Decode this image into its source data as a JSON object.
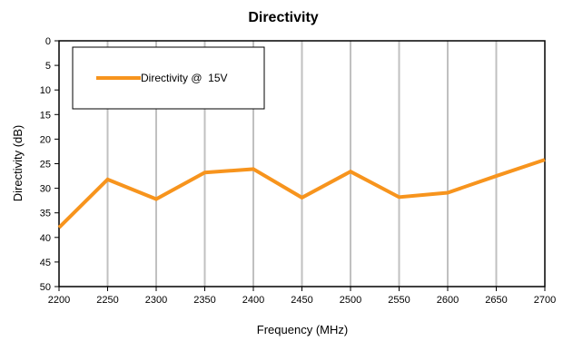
{
  "chart_data": {
    "type": "line",
    "title": "Directivity",
    "xlabel": "Frequency (MHz)",
    "ylabel": "Directivity (dB)",
    "x": [
      2200,
      2250,
      2300,
      2350,
      2400,
      2450,
      2500,
      2550,
      2600,
      2650,
      2700
    ],
    "xlim": [
      2200,
      2700
    ],
    "ylim": [
      0,
      50
    ],
    "y_inverted": true,
    "x_ticks": [
      "2200",
      "2250",
      "2300",
      "2350",
      "2400",
      "2450",
      "2500",
      "2550",
      "2600",
      "2650",
      "2700"
    ],
    "y_ticks": [
      "0",
      "5",
      "10",
      "15",
      "20",
      "25",
      "30",
      "35",
      "40",
      "45",
      "50"
    ],
    "grid": "vertical",
    "legend_position": "top-left",
    "series": [
      {
        "name": "Directivity @  15V",
        "color": "#F7941D",
        "values": [
          38,
          28.2,
          32.2,
          26.8,
          26.1,
          31.9,
          26.6,
          31.8,
          30.9,
          27.5,
          24.2
        ]
      }
    ]
  }
}
